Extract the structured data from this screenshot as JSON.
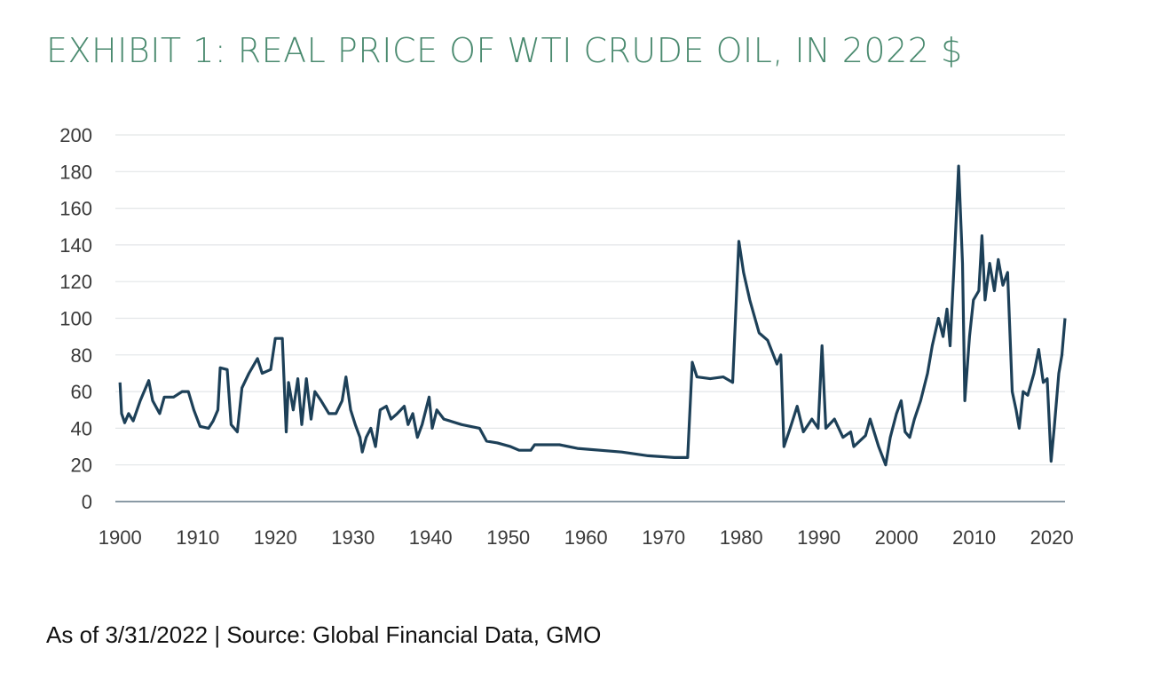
{
  "chart_data": {
    "type": "line",
    "title": "EXHIBIT 1: REAL PRICE OF WTI CRUDE OIL, IN 2022 $",
    "note": "As of 3/31/2022 | Source: Global Financial Data, GMO",
    "color": "#1d4058",
    "grid": true,
    "xlim": [
      1899.4,
      2021.7
    ],
    "xticks": [
      1900,
      1910,
      1920,
      1930,
      1940,
      1950,
      1960,
      1970,
      1980,
      1990,
      2000,
      2010,
      2020
    ],
    "ylim": [
      0,
      200
    ],
    "yticks": [
      0,
      20,
      40,
      60,
      80,
      100,
      120,
      140,
      160,
      180,
      200
    ],
    "x": [
      1900,
      1900.2,
      1900.6,
      1901.1,
      1901.7,
      1902.6,
      1903.7,
      1904.2,
      1905.1,
      1905.7,
      1906.9,
      1908,
      1908.8,
      1909.5,
      1910.3,
      1911.4,
      1912,
      1912.6,
      1912.9,
      1913.8,
      1914.3,
      1915.1,
      1915.7,
      1916.6,
      1917.7,
      1918.3,
      1919.4,
      1920,
      1920.9,
      1921.4,
      1921.7,
      1922.3,
      1922.9,
      1923.4,
      1924,
      1924.6,
      1925.1,
      1925.9,
      1926.9,
      1927.8,
      1928.6,
      1929.1,
      1929.7,
      1930.3,
      1930.9,
      1931.2,
      1931.7,
      1932.3,
      1932.9,
      1933.5,
      1934.3,
      1934.9,
      1935.7,
      1936.6,
      1937.1,
      1937.7,
      1938.3,
      1938.9,
      1939.8,
      1940.2,
      1940.8,
      1941.7,
      1944,
      1946.3,
      1947.2,
      1948.6,
      1950.3,
      1951.4,
      1952.9,
      1953.4,
      1956.6,
      1958.9,
      1964.6,
      1968,
      1971.4,
      1973.1,
      1973.7,
      1974.3,
      1976,
      1977.7,
      1978.9,
      1979.7,
      1980.3,
      1981.1,
      1982.3,
      1983.4,
      1984.6,
      1985.1,
      1985.5,
      1986.3,
      1987.2,
      1988,
      1989.1,
      1989.9,
      1990.4,
      1990.9,
      1992,
      1993.1,
      1994.1,
      1994.5,
      1996,
      1996.6,
      1997.7,
      1998.6,
      1999.2,
      2000,
      2000.6,
      2001.1,
      2001.7,
      2002.3,
      2003.1,
      2004,
      2004.6,
      2005.4,
      2006,
      2006.5,
      2006.9,
      2007.4,
      2008,
      2008.5,
      2008.8,
      2009.4,
      2009.9,
      2010.6,
      2011,
      2011.4,
      2012,
      2012.6,
      2013.1,
      2013.7,
      2014.3,
      2014.9,
      2015.4,
      2015.8,
      2016.3,
      2016.9,
      2017.7,
      2018.3,
      2018.9,
      2019.4,
      2019.9,
      2020.3,
      2020.9,
      2021.3,
      2021.7
    ],
    "values": [
      65,
      48,
      43,
      48,
      44,
      55,
      66,
      55,
      48,
      57,
      57,
      60,
      60,
      50,
      41,
      40,
      44,
      50,
      73,
      72,
      42,
      38,
      62,
      70,
      78,
      70,
      72,
      89,
      89,
      38,
      65,
      50,
      67,
      42,
      67,
      45,
      60,
      55,
      48,
      48,
      55,
      68,
      50,
      42,
      35,
      27,
      35,
      40,
      30,
      50,
      52,
      45,
      48,
      52,
      42,
      48,
      35,
      42,
      57,
      40,
      50,
      45,
      42,
      40,
      33,
      32,
      30,
      28,
      28,
      31,
      31,
      29,
      27,
      25,
      24,
      24,
      76,
      68,
      67,
      68,
      65,
      142,
      125,
      110,
      92,
      88,
      75,
      80,
      30,
      40,
      52,
      38,
      45,
      40,
      85,
      40,
      45,
      35,
      38,
      30,
      36,
      45,
      30,
      20,
      35,
      48,
      55,
      38,
      35,
      45,
      55,
      70,
      85,
      100,
      90,
      105,
      85,
      128,
      183,
      130,
      55,
      90,
      110,
      115,
      145,
      110,
      130,
      115,
      132,
      118,
      125,
      60,
      50,
      40,
      60,
      58,
      70,
      83,
      65,
      67,
      22,
      40,
      70,
      80,
      100
    ]
  }
}
